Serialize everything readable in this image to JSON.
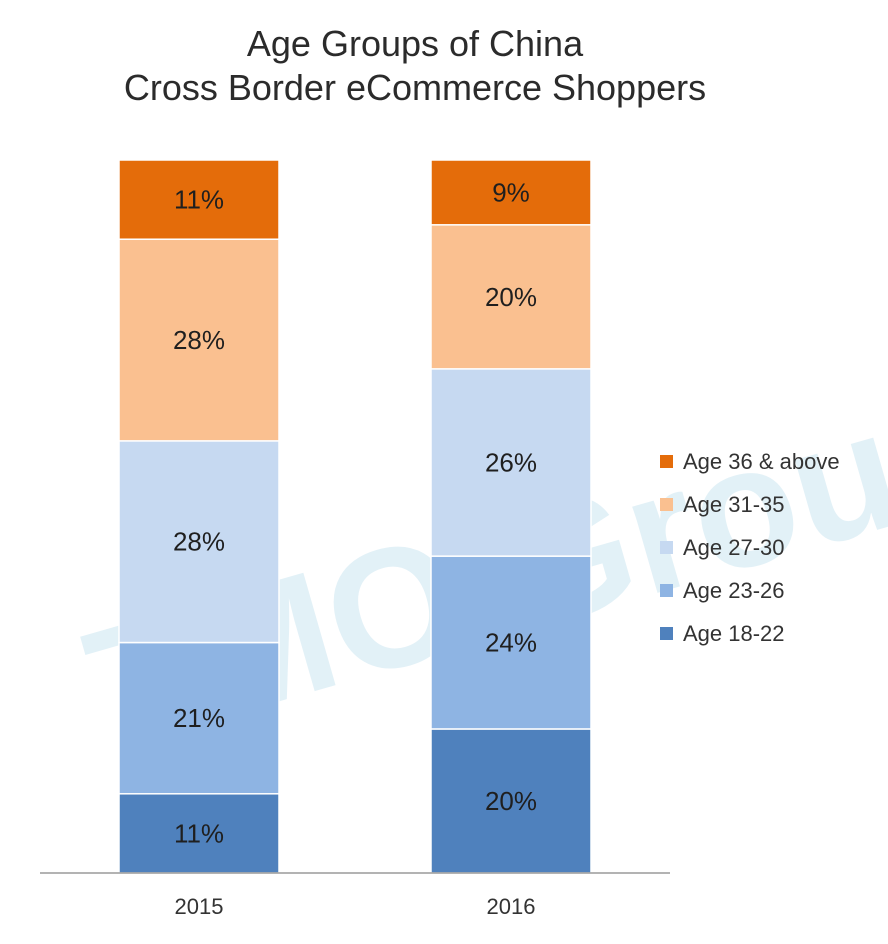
{
  "chart_data": {
    "type": "bar",
    "stacked": true,
    "title_lines": [
      "Age Groups of China",
      "Cross Border eCommerce Shoppers"
    ],
    "categories": [
      "2015",
      "2016"
    ],
    "series": [
      {
        "name": "Age 18-22",
        "color": "#4F81BD",
        "values": [
          11,
          20
        ],
        "labels": [
          "11%",
          "20%"
        ]
      },
      {
        "name": "Age 23-26",
        "color": "#8EB4E3",
        "values": [
          21,
          24
        ],
        "labels": [
          "21%",
          "24%"
        ]
      },
      {
        "name": "Age 27-30",
        "color": "#C6D9F1",
        "values": [
          28,
          26
        ],
        "labels": [
          "28%",
          "26%"
        ]
      },
      {
        "name": "Age 31-35",
        "color": "#FAC090",
        "values": [
          28,
          20
        ],
        "labels": [
          "28%",
          "20%"
        ]
      },
      {
        "name": "Age 36 & above",
        "color": "#E46C0A",
        "values": [
          11,
          9
        ],
        "labels": [
          "11%",
          "9%"
        ]
      }
    ],
    "ylim": [
      0,
      100
    ],
    "grid": false,
    "legend_position": "right"
  },
  "watermark": {
    "text": "TMO Group",
    "color": "#a9d3e6"
  }
}
